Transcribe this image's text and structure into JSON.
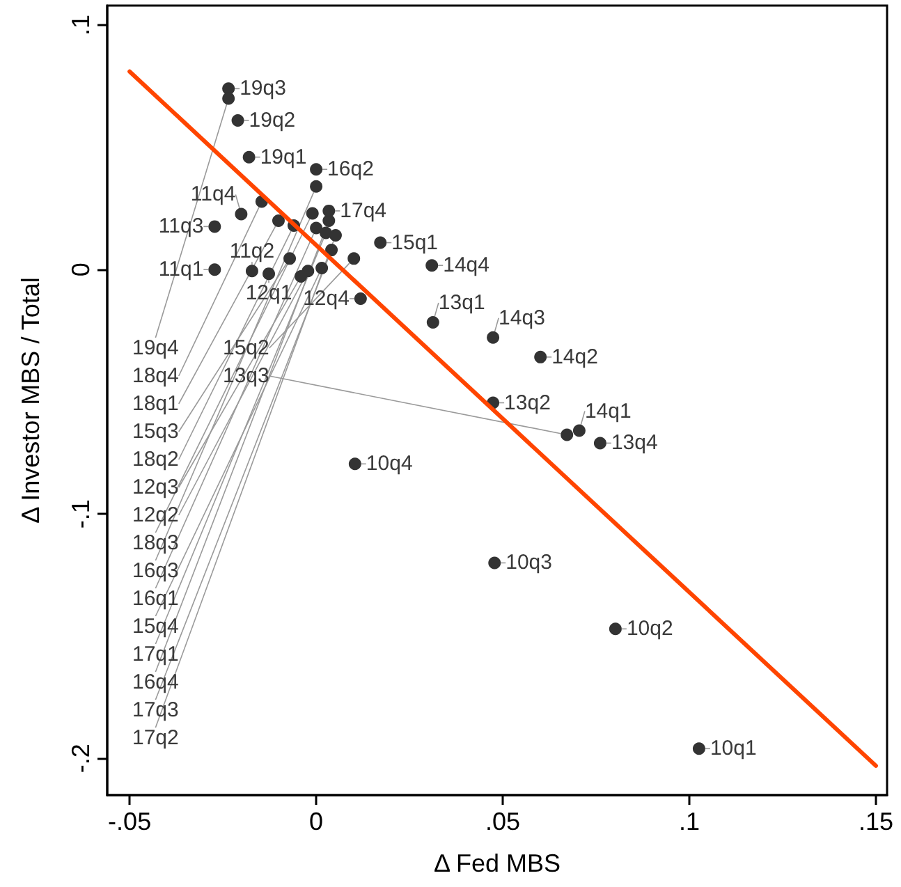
{
  "chart_data": {
    "type": "scatter",
    "xlabel": "Δ Fed MBS",
    "ylabel": "Δ Investor MBS / Total",
    "xlim": [
      -0.056,
      0.153
    ],
    "ylim": [
      -0.215,
      0.108
    ],
    "xticks": [
      {
        "value": -0.05,
        "label": "-.05"
      },
      {
        "value": 0,
        "label": "0"
      },
      {
        "value": 0.05,
        "label": ".05"
      },
      {
        "value": 0.1,
        "label": ".1"
      },
      {
        "value": 0.15,
        "label": ".15"
      }
    ],
    "yticks": [
      {
        "value": -0.2,
        "label": "-.2"
      },
      {
        "value": -0.1,
        "label": "-.1"
      },
      {
        "value": 0,
        "label": "0"
      },
      {
        "value": 0.1,
        "label": ".1"
      }
    ],
    "grid": false,
    "marker": "circle",
    "series": [
      {
        "type": "scatter",
        "color": "#333333",
        "x": [
          0.1026,
          0.0802,
          0.0478,
          0.0104,
          -0.0272,
          -0.0172,
          -0.0272,
          -0.0201,
          -0.0127,
          -0.0022,
          -0.0041,
          0.0119,
          0.0313,
          0.0474,
          0.0672,
          0.0761,
          0.0705,
          0.0601,
          0.0474,
          0.031,
          0.0172,
          0.0101,
          -0.0071,
          0.0015,
          0.0,
          0.0,
          0.0,
          0.0034,
          0.0026,
          0.0052,
          0.0041,
          0.0034,
          -0.0101,
          -0.006,
          -0.001,
          -0.0146,
          -0.018,
          -0.021,
          -0.0235,
          -0.0235
        ],
        "values": [
          -0.196,
          -0.147,
          -0.12,
          -0.0795,
          0.0,
          -0.0006,
          0.0176,
          0.0227,
          -0.0017,
          -0.0006,
          -0.0028,
          -0.0119,
          -0.0216,
          -0.0545,
          -0.0676,
          -0.071,
          -0.0659,
          -0.0358,
          -0.0278,
          0.0017,
          0.011,
          0.0045,
          0.0045,
          0.0006,
          0.017,
          0.041,
          0.034,
          0.02,
          0.015,
          0.014,
          0.008,
          0.024,
          0.02,
          0.018,
          0.023,
          0.0278,
          0.046,
          0.061,
          0.074,
          0.07
        ],
        "value_labels": [
          "10q1",
          "10q2",
          "10q3",
          "10q4",
          "11q1",
          "11q2",
          "11q3",
          "11q4",
          "12q1",
          "12q2",
          "12q3",
          "12q4",
          "13q1",
          "13q2",
          "13q3",
          "13q4",
          "14q1",
          "14q2",
          "14q3",
          "14q4",
          "15q1",
          "15q2",
          "15q3",
          "15q4",
          "16q1",
          "16q2",
          "16q3",
          "16q4",
          "17q1",
          "17q2",
          "17q3",
          "17q4",
          "18q1",
          "18q2",
          "18q3",
          "18q4",
          "19q1",
          "19q2",
          "19q3",
          "19q4"
        ]
      },
      {
        "type": "line",
        "color": "#ff4500",
        "marker": "none",
        "line_style": "solid",
        "x": [
          -0.05,
          0.15
        ],
        "values": [
          0.081,
          -0.203
        ]
      }
    ]
  }
}
